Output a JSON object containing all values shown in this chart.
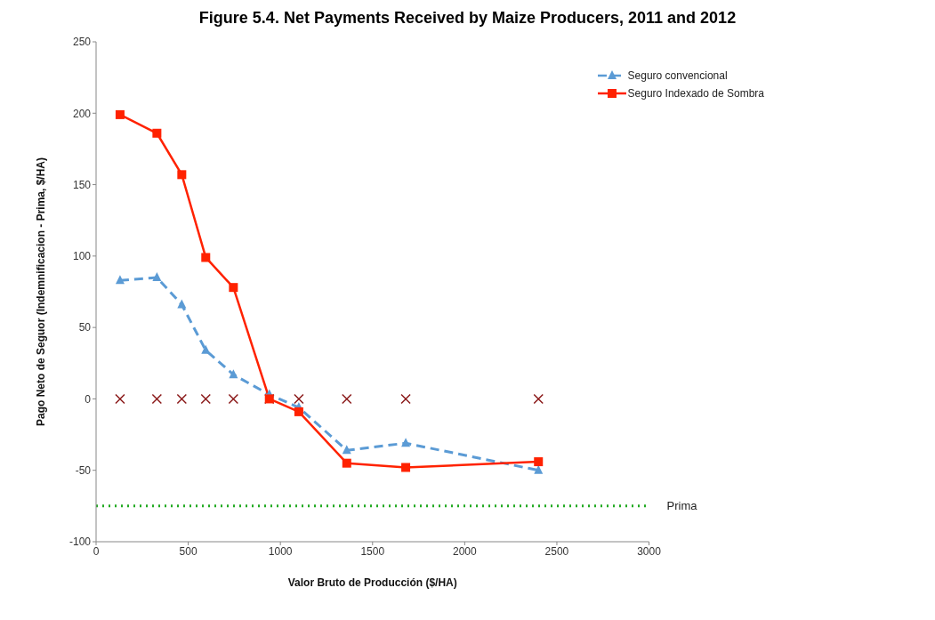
{
  "chart_data": {
    "type": "line",
    "title": "Figure 5.4. Net Payments Received by Maize Producers, 2011 and 2012",
    "xlabel": "Valor Bruto de Producción ($/HA)",
    "ylabel": "Pago Neto de Seguor (Indemnificacion - Prima, $/HA)",
    "x": [
      130,
      330,
      465,
      595,
      745,
      940,
      1100,
      1360,
      1680,
      2400
    ],
    "series": [
      {
        "name": "Seguro convencional",
        "color": "#5b9bd5",
        "marker": "triangle",
        "line_style": "dashed",
        "values": [
          83,
          85,
          66,
          34,
          17,
          3,
          -6,
          -36,
          -31,
          -50
        ]
      },
      {
        "name": "Seguro Indexado de Sombra",
        "color": "#ff2200",
        "marker": "square",
        "line_style": "solid",
        "values": [
          199,
          186,
          157,
          99,
          78,
          0,
          -9,
          -45,
          -48,
          -44
        ]
      },
      {
        "type": "scatter",
        "color": "#8b1a1a",
        "marker": "cross",
        "values": [
          0,
          0,
          0,
          0,
          0,
          0,
          0,
          0,
          0,
          0
        ]
      }
    ],
    "xlim": [
      0,
      3000
    ],
    "xticks": [
      0,
      500,
      1000,
      1500,
      2000,
      2500,
      3000
    ],
    "ylim": [
      -100,
      250
    ],
    "yticks": [
      -100,
      -50,
      0,
      50,
      100,
      150,
      200,
      250
    ],
    "ref_lines": [
      {
        "axis": "y",
        "value": -75,
        "label": "Prima",
        "color": "#22aa22",
        "line_style": "dotted"
      }
    ],
    "grid": false,
    "legend": "top right"
  }
}
